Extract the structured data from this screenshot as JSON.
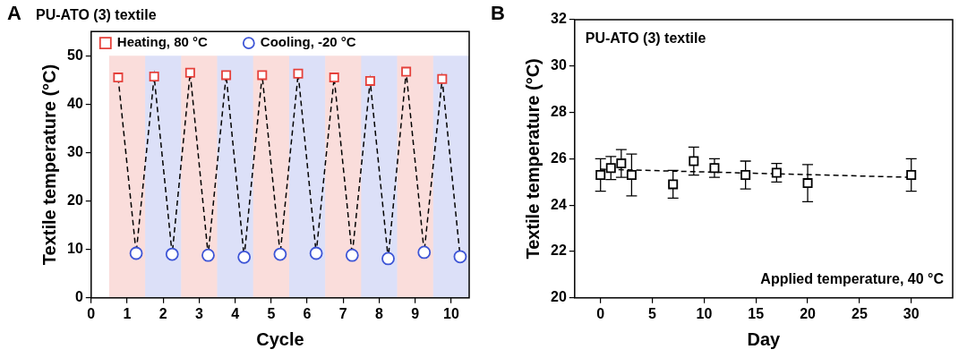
{
  "chart_data": [
    {
      "panel": "A",
      "type": "scatter",
      "title": "PU-ATO (3) textile",
      "x_label": "Cycle",
      "y_label": "Textile temperature (°C)",
      "series": [
        {
          "name": "Heating, 80 °C",
          "color": "#e5403a",
          "marker": "square",
          "x": [
            0.75,
            1.75,
            2.75,
            3.75,
            4.75,
            5.75,
            6.75,
            7.75,
            8.75,
            9.75
          ],
          "values": [
            45.5,
            45.7,
            46.5,
            46.0,
            46.0,
            46.3,
            45.5,
            44.8,
            46.7,
            45.2
          ]
        },
        {
          "name": "Cooling, -20 °C",
          "color": "#3d55d6",
          "marker": "circle",
          "x": [
            1.25,
            2.25,
            3.25,
            4.25,
            5.25,
            6.25,
            7.25,
            8.25,
            9.25,
            10.25
          ],
          "values": [
            9.2,
            9.0,
            8.8,
            8.4,
            9.0,
            9.2,
            8.8,
            8.1,
            9.4,
            8.5
          ]
        }
      ],
      "line_style": "dashed",
      "xlim": [
        0,
        10.5
      ],
      "xticks": [
        0,
        1,
        2,
        3,
        4,
        5,
        6,
        7,
        8,
        9,
        10
      ],
      "ylim": [
        0,
        55
      ],
      "yticks": [
        0,
        10,
        20,
        30,
        40,
        50
      ],
      "grid": false,
      "legend": "upper left"
    },
    {
      "panel": "B",
      "type": "scatter",
      "annotations": [
        "PU-ATO (3) textile",
        "Applied temperature, 40 °C"
      ],
      "x_label": "Day",
      "y_label": "Textile temperature (°C)",
      "series": [
        {
          "color": "#000000",
          "marker": "square",
          "x": [
            0,
            1,
            2,
            3,
            7,
            9,
            11,
            14,
            17,
            20,
            30
          ],
          "values": [
            25.3,
            25.6,
            25.8,
            25.3,
            24.9,
            25.9,
            25.6,
            25.3,
            25.4,
            24.95,
            25.3
          ],
          "errors": [
            0.7,
            0.5,
            0.6,
            0.9,
            0.6,
            0.6,
            0.4,
            0.6,
            0.4,
            0.8,
            0.7
          ]
        },
        {
          "type": "line",
          "color": "#000000",
          "line_style": "dashed",
          "x": [
            0,
            30
          ],
          "values": [
            25.55,
            25.2
          ]
        }
      ],
      "xlim": [
        -2.5,
        34
      ],
      "xticks": [
        0,
        5,
        10,
        15,
        20,
        25,
        30
      ],
      "ylim": [
        20,
        32
      ],
      "yticks": [
        20,
        22,
        24,
        26,
        28,
        30,
        32
      ],
      "grid": false
    }
  ]
}
